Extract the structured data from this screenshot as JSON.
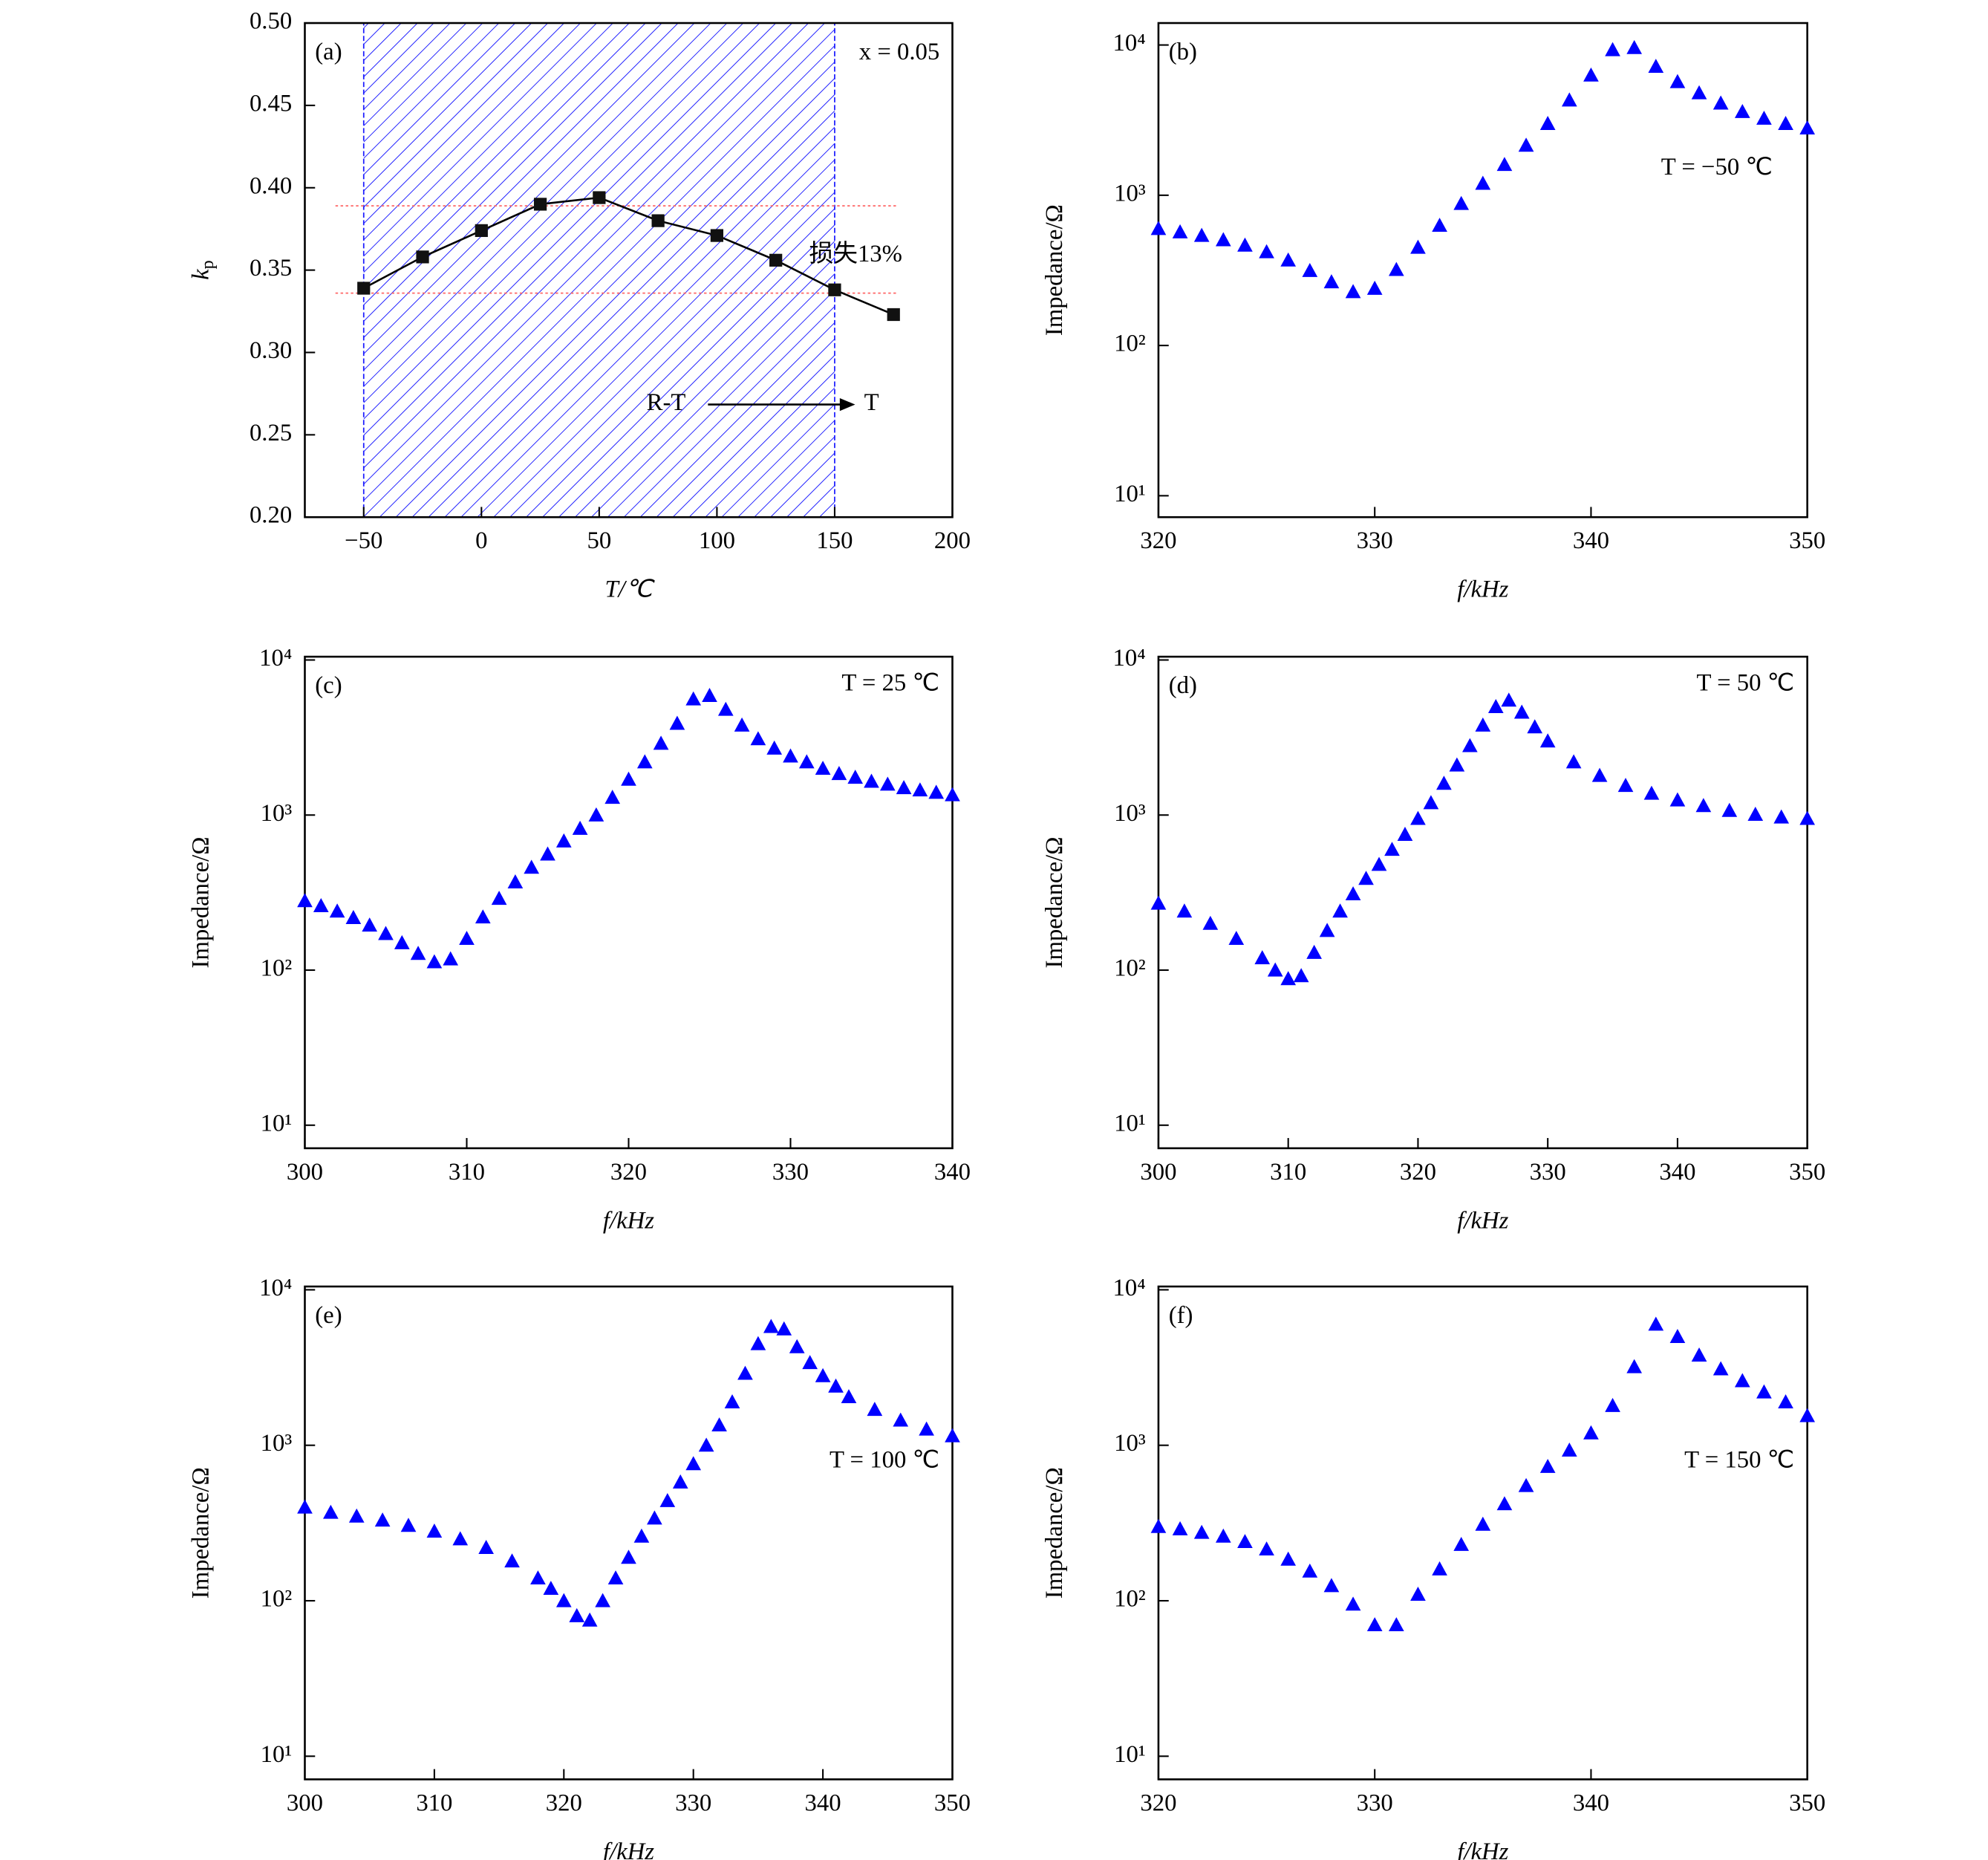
{
  "chart_data": [
    {
      "type": "line",
      "panel_label": "(a)",
      "xlabel": "T/℃",
      "ylabel": "k",
      "ylabel_sub": "p",
      "color": "#000000",
      "x": [
        -50,
        -25,
        0,
        25,
        50,
        75,
        100,
        125,
        150,
        175
      ],
      "values": [
        0.339,
        0.358,
        0.374,
        0.39,
        0.394,
        0.38,
        0.371,
        0.356,
        0.338,
        0.323
      ],
      "xlim": [
        -75,
        200
      ],
      "ylim": [
        0.2,
        0.5
      ],
      "xticks": [
        {
          "value": -50,
          "label": "−50"
        },
        0,
        50,
        100,
        150,
        200
      ],
      "yticks": [
        {
          "value": 0.2,
          "label": "0.20"
        },
        0.25,
        {
          "value": 0.3,
          "label": "0.30"
        },
        0.35,
        {
          "value": 0.4,
          "label": "0.40"
        },
        0.45,
        {
          "value": 0.5,
          "label": "0.50"
        }
      ],
      "shade_xrange": [
        -50,
        150
      ],
      "shade_color": "#1a1aff",
      "hlines": [
        0.389,
        0.336
      ],
      "hline_color": "#ff6666",
      "annotations": [
        "x = 0.05",
        "损失13%",
        "R-T",
        "T"
      ]
    },
    {
      "type": "scatter",
      "panel_label": "(b)",
      "annotation": "T = −50 ℃",
      "xlabel": "f/kHz",
      "ylabel": "Impedance/Ω",
      "color": "#0000ff",
      "log_y": true,
      "x": [
        320,
        321,
        322,
        323,
        324,
        325,
        326,
        327,
        328,
        329,
        330,
        331,
        332,
        333,
        334,
        335,
        336,
        337,
        338,
        339,
        340,
        341,
        342,
        343,
        344,
        345,
        346,
        347,
        348,
        349,
        350
      ],
      "values": [
        600,
        570,
        540,
        505,
        465,
        420,
        370,
        315,
        265,
        228,
        240,
        320,
        450,
        630,
        880,
        1200,
        1600,
        2150,
        3000,
        4300,
        6300,
        9300,
        9600,
        7200,
        5700,
        4800,
        4100,
        3600,
        3250,
        3000,
        2800
      ],
      "xlim": [
        320,
        350
      ],
      "ylim": [
        7.2,
        14000
      ],
      "xticks": [
        320,
        330,
        340,
        350
      ],
      "yticks": [
        {
          "value": 10,
          "label": "10¹"
        },
        {
          "value": 100,
          "label": "10²"
        },
        {
          "value": 1000,
          "label": "10³"
        },
        {
          "value": 10000,
          "label": "10⁴"
        }
      ]
    },
    {
      "type": "scatter",
      "panel_label": "(c)",
      "annotation": "T = 25 ℃",
      "xlabel": "f/kHz",
      "ylabel": "Impedance/Ω",
      "color": "#0000ff",
      "log_y": true,
      "x": [
        300,
        301,
        302,
        303,
        304,
        305,
        306,
        307,
        308,
        309,
        310,
        311,
        312,
        313,
        314,
        315,
        316,
        317,
        318,
        319,
        320,
        321,
        322,
        323,
        324,
        325,
        326,
        327,
        328,
        329,
        330,
        331,
        332,
        333,
        334,
        335,
        336,
        337,
        338,
        339,
        340
      ],
      "values": [
        280,
        260,
        240,
        218,
        195,
        172,
        150,
        128,
        113,
        118,
        160,
        220,
        290,
        370,
        460,
        560,
        680,
        820,
        1000,
        1300,
        1700,
        2200,
        2900,
        3900,
        5600,
        5900,
        4800,
        3800,
        3100,
        2700,
        2400,
        2200,
        2000,
        1850,
        1750,
        1650,
        1580,
        1500,
        1450,
        1400,
        1350
      ],
      "xlim": [
        300,
        340
      ],
      "ylim": [
        7.1,
        10500
      ],
      "xticks": [
        300,
        310,
        320,
        330,
        340
      ],
      "yticks": [
        {
          "value": 10,
          "label": "10¹"
        },
        {
          "value": 100,
          "label": "10²"
        },
        {
          "value": 1000,
          "label": "10³"
        },
        {
          "value": 10000,
          "label": "10⁴"
        }
      ]
    },
    {
      "type": "scatter",
      "panel_label": "(d)",
      "annotation": "T = 50 ℃",
      "xlabel": "f/kHz",
      "ylabel": "Impedance/Ω",
      "color": "#0000ff",
      "log_y": true,
      "x": [
        300,
        302,
        304,
        306,
        308,
        309,
        310,
        311,
        312,
        313,
        314,
        315,
        316,
        317,
        318,
        319,
        320,
        321,
        322,
        323,
        324,
        325,
        326,
        327,
        328,
        329,
        330,
        332,
        334,
        336,
        338,
        340,
        342,
        344,
        346,
        348,
        350
      ],
      "values": [
        270,
        240,
        200,
        160,
        120,
        100,
        88,
        92,
        130,
        180,
        240,
        310,
        390,
        480,
        600,
        750,
        950,
        1200,
        1600,
        2100,
        2800,
        3800,
        5000,
        5500,
        4600,
        3700,
        3000,
        2200,
        1800,
        1550,
        1380,
        1250,
        1150,
        1070,
        1010,
        970,
        950
      ],
      "xlim": [
        300,
        350
      ],
      "ylim": [
        7.1,
        10500
      ],
      "xticks": [
        300,
        310,
        320,
        330,
        340,
        350
      ],
      "yticks": [
        {
          "value": 10,
          "label": "10¹"
        },
        {
          "value": 100,
          "label": "10²"
        },
        {
          "value": 1000,
          "label": "10³"
        },
        {
          "value": 10000,
          "label": "10⁴"
        }
      ]
    },
    {
      "type": "scatter",
      "panel_label": "(e)",
      "annotation": "T = 100 ℃",
      "xlabel": "f/kHz",
      "ylabel": "Impedance/Ω",
      "color": "#0000ff",
      "log_y": true,
      "x": [
        300,
        302,
        304,
        306,
        308,
        310,
        312,
        314,
        316,
        318,
        319,
        320,
        321,
        322,
        323,
        324,
        325,
        326,
        327,
        328,
        329,
        330,
        331,
        332,
        333,
        334,
        335,
        336,
        337,
        338,
        339,
        340,
        341,
        342,
        344,
        346,
        348,
        350
      ],
      "values": [
        400,
        370,
        350,
        330,
        305,
        280,
        250,
        220,
        180,
        140,
        120,
        100,
        80,
        75,
        100,
        140,
        190,
        260,
        340,
        440,
        580,
        760,
        1000,
        1350,
        1900,
        2900,
        4500,
        5800,
        5600,
        4300,
        3400,
        2800,
        2400,
        2050,
        1700,
        1450,
        1270,
        1150
      ],
      "xlim": [
        300,
        350
      ],
      "ylim": [
        7.1,
        10500
      ],
      "xticks": [
        300,
        310,
        320,
        330,
        340,
        350
      ],
      "yticks": [
        {
          "value": 10,
          "label": "10¹"
        },
        {
          "value": 100,
          "label": "10²"
        },
        {
          "value": 1000,
          "label": "10³"
        },
        {
          "value": 10000,
          "label": "10⁴"
        }
      ]
    },
    {
      "type": "scatter",
      "panel_label": "(f)",
      "annotation": "T = 150 ℃",
      "xlabel": "f/kHz",
      "ylabel": "Impedance/Ω",
      "color": "#0000ff",
      "log_y": true,
      "x": [
        320,
        321,
        322,
        323,
        324,
        325,
        326,
        327,
        328,
        329,
        330,
        331,
        332,
        333,
        334,
        335,
        336,
        337,
        338,
        339,
        340,
        341,
        342,
        343,
        344,
        345,
        346,
        347,
        348,
        349,
        350
      ],
      "values": [
        300,
        290,
        275,
        260,
        240,
        215,
        185,
        155,
        125,
        95,
        70,
        70,
        110,
        160,
        230,
        310,
        420,
        550,
        730,
        930,
        1200,
        1800,
        3200,
        6000,
        5000,
        3800,
        3100,
        2600,
        2200,
        1900,
        1550
      ],
      "xlim": [
        320,
        350
      ],
      "ylim": [
        7.1,
        10500
      ],
      "xticks": [
        320,
        330,
        340,
        350
      ],
      "yticks": [
        {
          "value": 10,
          "label": "10¹"
        },
        {
          "value": 100,
          "label": "10²"
        },
        {
          "value": 1000,
          "label": "10³"
        },
        {
          "value": 10000,
          "label": "10⁴"
        }
      ]
    }
  ]
}
